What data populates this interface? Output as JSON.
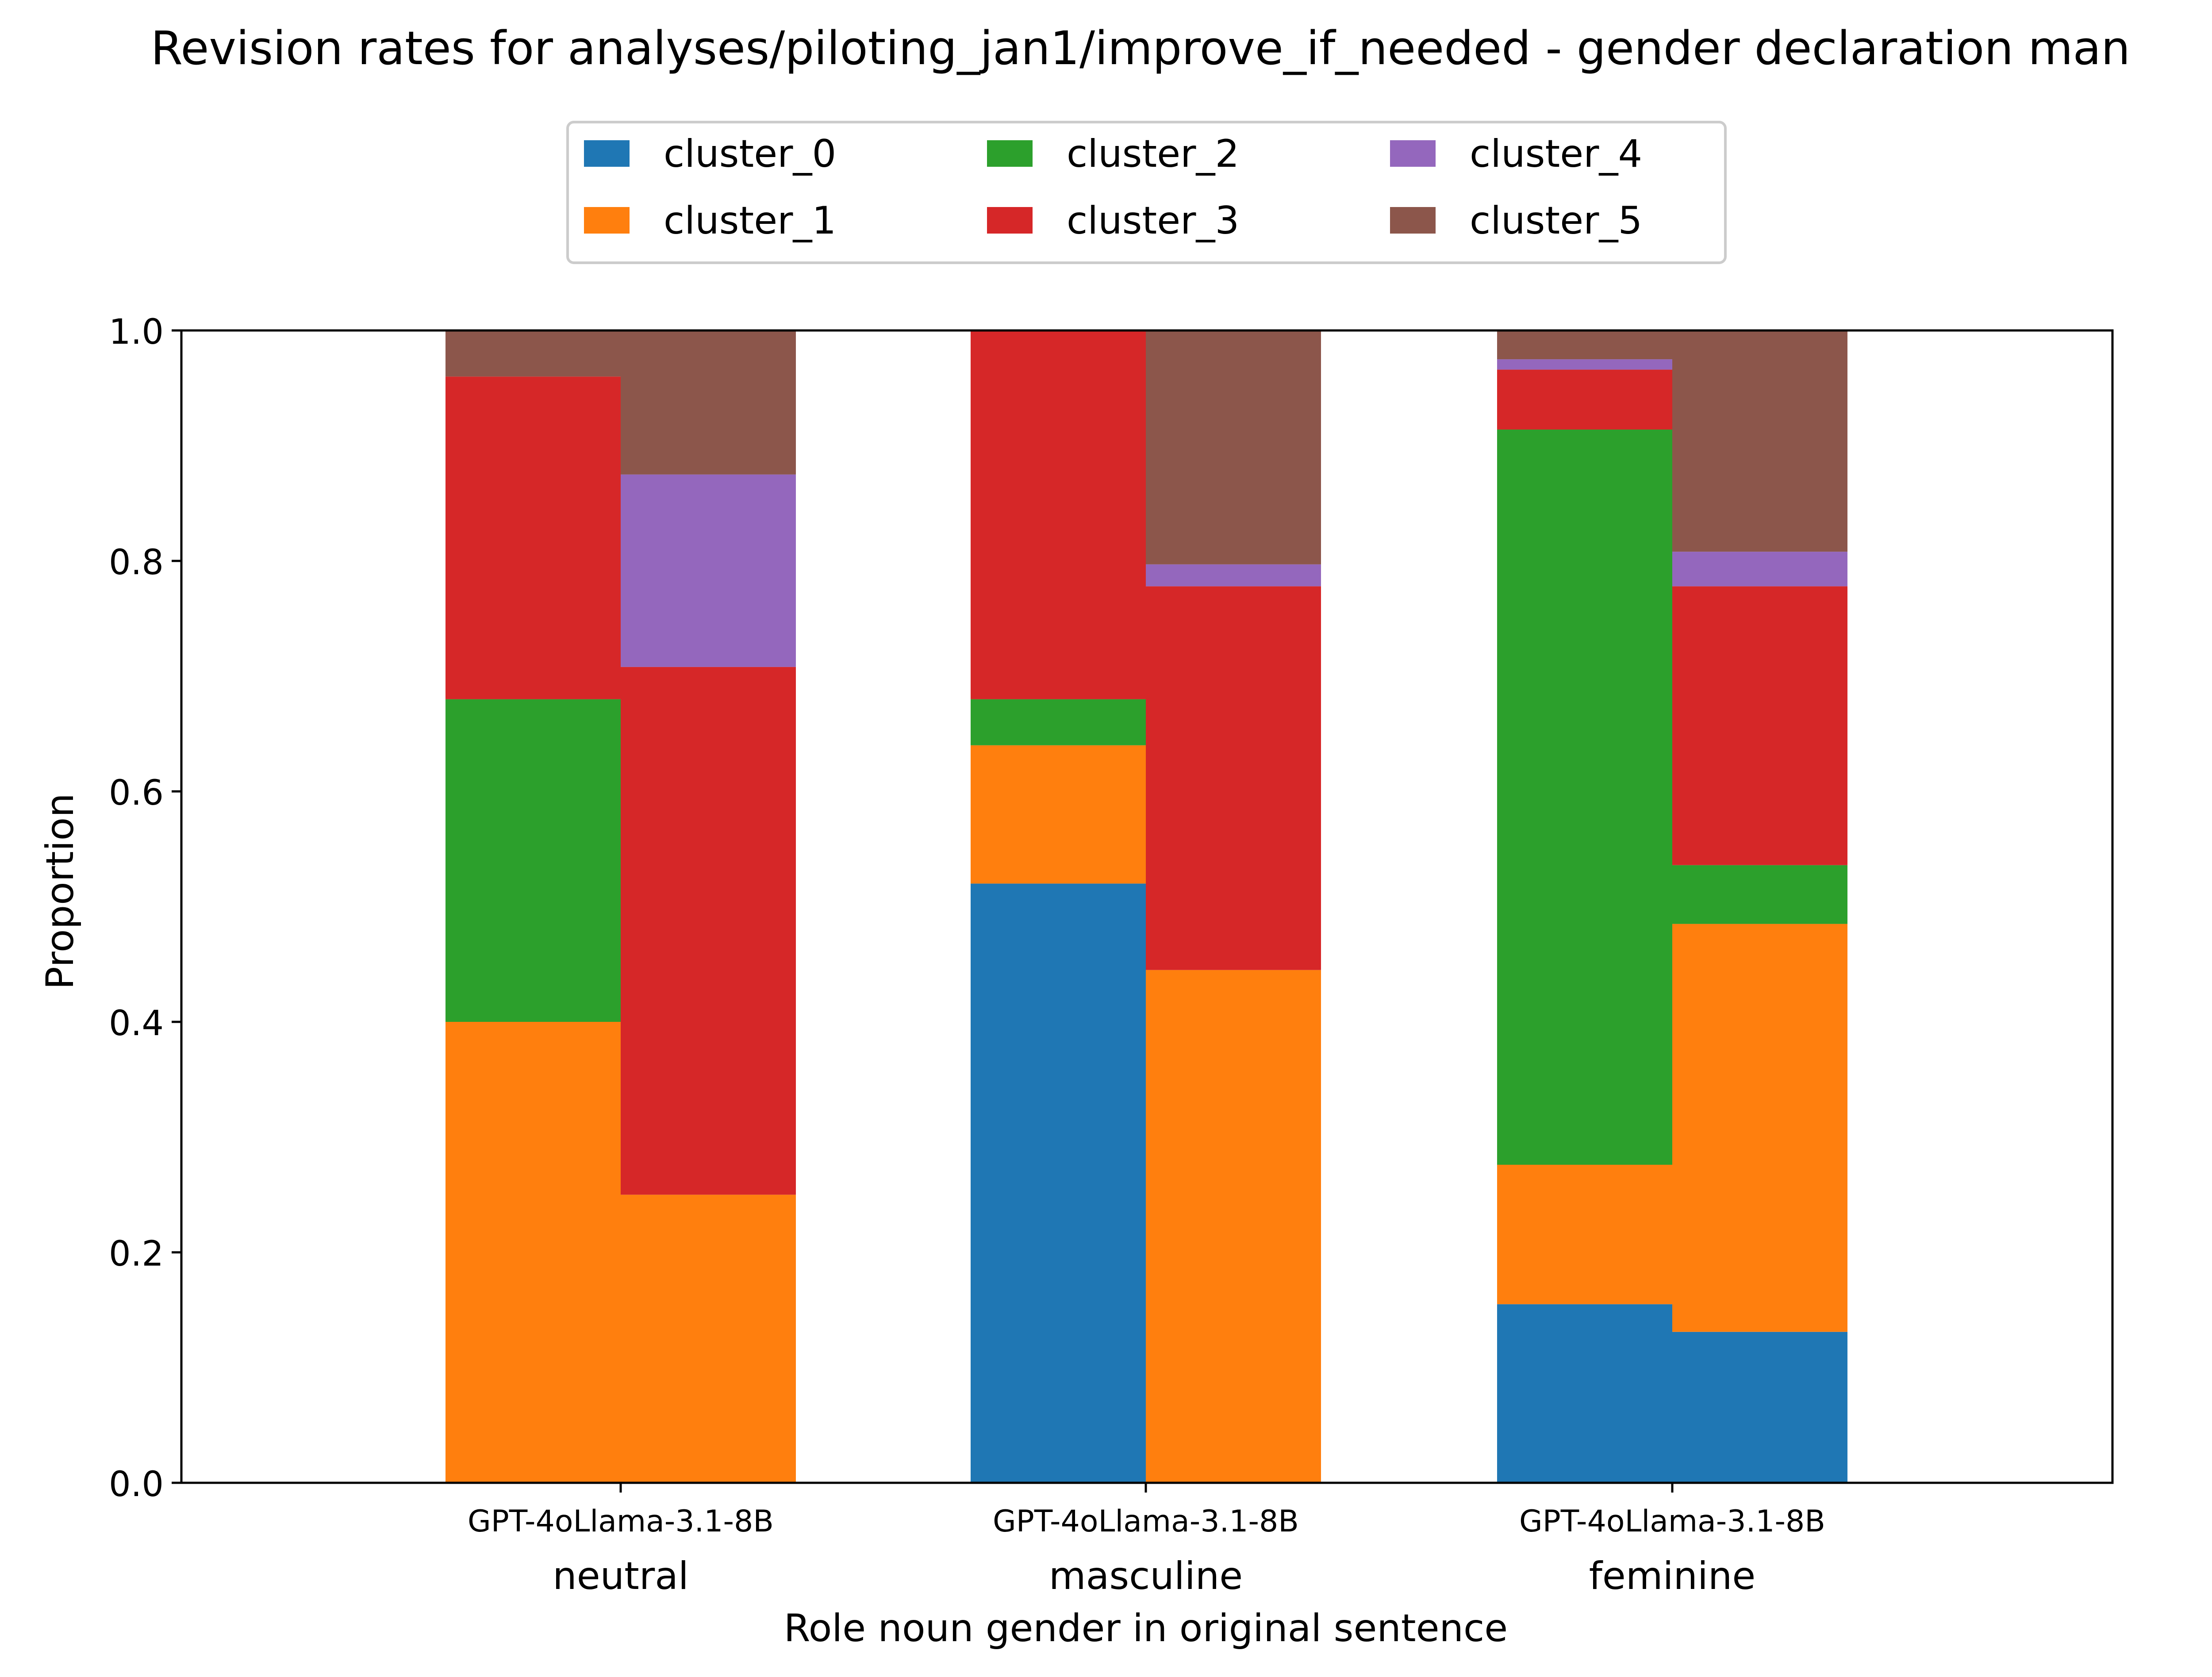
{
  "chart_data": {
    "type": "bar",
    "stacked": true,
    "title": "Revision rates for analyses/piloting_jan1/improve_if_needed - gender declaration man",
    "xlabel": "Role noun gender in original sentence",
    "ylabel": "Proportion",
    "ylim": [
      0,
      1
    ],
    "yticks": [
      "0.0",
      "0.2",
      "0.4",
      "0.6",
      "0.8",
      "1.0"
    ],
    "grid": false,
    "legend_position": "top-center",
    "groups": [
      "neutral",
      "masculine",
      "feminine"
    ],
    "models": [
      "GPT-4o",
      "Llama-3.1-8B"
    ],
    "series": [
      {
        "name": "cluster_0",
        "color": "#1f77b4",
        "values": [
          [
            0.0,
            0.0
          ],
          [
            0.52,
            0.0
          ],
          [
            0.155,
            0.131
          ]
        ]
      },
      {
        "name": "cluster_1",
        "color": "#ff7f0e",
        "values": [
          [
            0.4,
            0.25
          ],
          [
            0.12,
            0.445
          ],
          [
            0.121,
            0.354
          ]
        ]
      },
      {
        "name": "cluster_2",
        "color": "#2ca02c",
        "values": [
          [
            0.28,
            0.0
          ],
          [
            0.04,
            0.0
          ],
          [
            0.638,
            0.051
          ]
        ]
      },
      {
        "name": "cluster_3",
        "color": "#d62728",
        "values": [
          [
            0.28,
            0.458
          ],
          [
            0.32,
            0.333
          ],
          [
            0.052,
            0.242
          ]
        ]
      },
      {
        "name": "cluster_4",
        "color": "#9467bd",
        "values": [
          [
            0.0,
            0.167
          ],
          [
            0.0,
            0.019
          ],
          [
            0.009,
            0.03
          ]
        ]
      },
      {
        "name": "cluster_5",
        "color": "#8c564b",
        "values": [
          [
            0.04,
            0.125
          ],
          [
            0.0,
            0.203
          ],
          [
            0.025,
            0.192
          ]
        ]
      }
    ]
  }
}
